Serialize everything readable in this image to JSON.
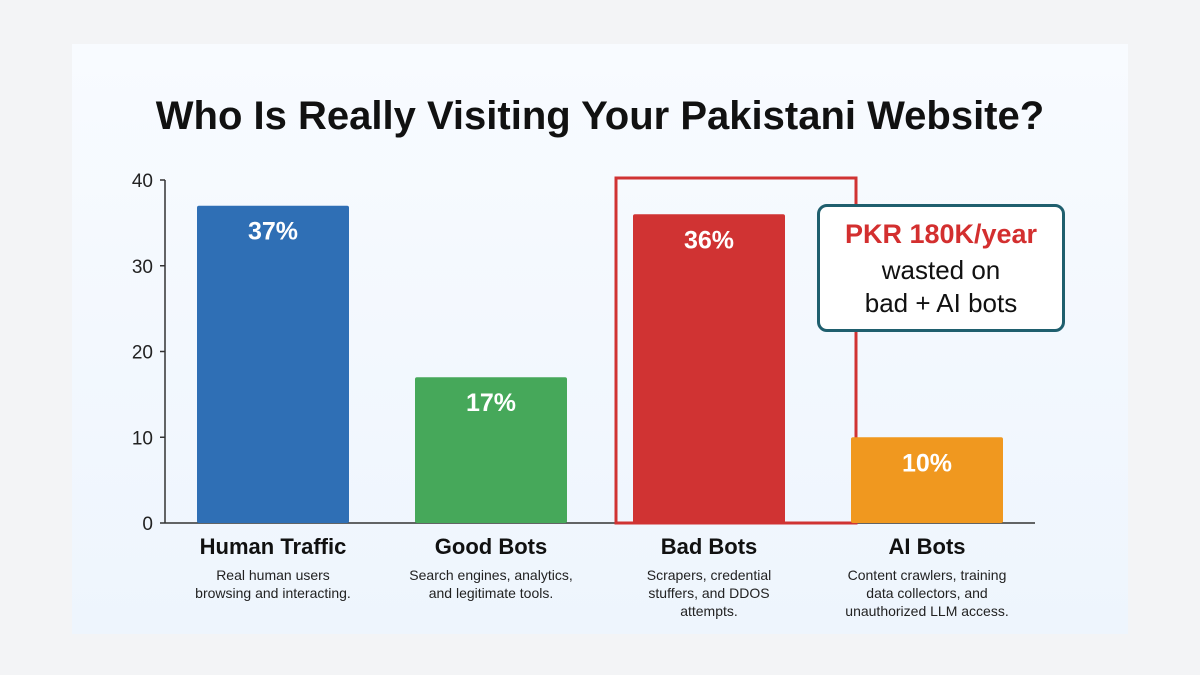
{
  "chart_data": {
    "type": "bar",
    "title": "Who Is Really Visiting Your Pakistani Website?",
    "categories": [
      "Human Traffic",
      "Good Bots",
      "Bad Bots",
      "AI Bots"
    ],
    "descriptions": [
      "Real human users\nbrowsing and interacting.",
      "Search engines, analytics,\nand legitimate tools.",
      "Scrapers, credential\nstuffers, and DDOS\nattempts.",
      "Content crawlers, training\ndata collectors, and\nunauthorized LLM access."
    ],
    "values": [
      37,
      17,
      36,
      10
    ],
    "data_labels": [
      "37%",
      "17%",
      "36%",
      "10%"
    ],
    "colors": [
      "#2f6fb5",
      "#46a85a",
      "#d03333",
      "#f0981f"
    ],
    "ylim": [
      0,
      40
    ],
    "yticks": [
      0,
      10,
      20,
      30,
      40
    ],
    "grid": false,
    "highlight": {
      "categories": [
        "Bad Bots",
        "AI Bots"
      ],
      "color": "#d03333"
    },
    "annotation": {
      "amount": "PKR 180K/year",
      "text": "wasted on\nbad + AI bots",
      "amount_color": "#d32f2f",
      "border_color": "#1f5f6e"
    }
  }
}
